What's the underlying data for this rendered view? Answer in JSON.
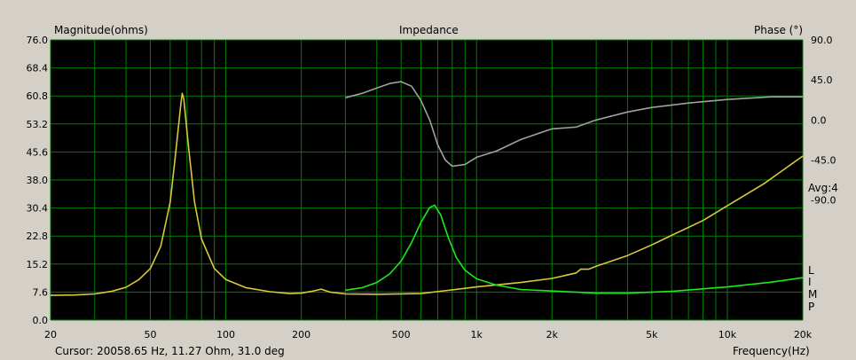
{
  "chart_data": {
    "type": "line",
    "title": "Impedance",
    "ylabel_left": "Magnitude(ohms)",
    "ylabel_right": "Phase (°)",
    "xlabel": "Frequency(Hz)",
    "x_scale": "log",
    "xlim": [
      20,
      20000
    ],
    "ylim_left": [
      0,
      76
    ],
    "ylim_right": [
      -225,
      90
    ],
    "x_ticks": [
      20,
      50,
      100,
      200,
      500,
      1000,
      2000,
      5000,
      10000,
      20000
    ],
    "x_tick_labels": [
      "20",
      "50",
      "100",
      "200",
      "500",
      "1k",
      "2k",
      "5k",
      "10k",
      "20k"
    ],
    "y_left_ticks": [
      0,
      7.6,
      15.2,
      22.8,
      30.4,
      38.0,
      45.6,
      53.2,
      60.8,
      68.4,
      76.0
    ],
    "y_left_tick_labels": [
      "0.0",
      "7.6",
      "15.2",
      "22.8",
      "30.4",
      "38.0",
      "45.6",
      "53.2",
      "60.8",
      "68.4",
      "76.0"
    ],
    "y_right_ticks": [
      90,
      45,
      0,
      -45,
      -90
    ],
    "y_right_tick_labels": [
      "90.0",
      "45.0",
      "0.0",
      "-45.0",
      "-90.0"
    ],
    "grid": true,
    "background": "#000000",
    "grid_color": "#007f00",
    "side_labels": [
      "Avg:4",
      "L",
      "I",
      "M",
      "P"
    ],
    "series": [
      {
        "axis": "left",
        "color": "#d8c93a",
        "points": [
          [
            20,
            6.7
          ],
          [
            25,
            6.8
          ],
          [
            30,
            7.1
          ],
          [
            35,
            7.8
          ],
          [
            40,
            8.9
          ],
          [
            45,
            11
          ],
          [
            50,
            14
          ],
          [
            55,
            20
          ],
          [
            60,
            32
          ],
          [
            63,
            45
          ],
          [
            66,
            58
          ],
          [
            67,
            61.5
          ],
          [
            68,
            60
          ],
          [
            71,
            47
          ],
          [
            75,
            32
          ],
          [
            80,
            22
          ],
          [
            90,
            14
          ],
          [
            100,
            11
          ],
          [
            120,
            8.8
          ],
          [
            150,
            7.7
          ],
          [
            180,
            7.2
          ],
          [
            200,
            7.3
          ],
          [
            220,
            7.8
          ],
          [
            240,
            8.4
          ],
          [
            260,
            7.6
          ],
          [
            300,
            7.1
          ],
          [
            400,
            7.0
          ],
          [
            600,
            7.2
          ],
          [
            800,
            8.2
          ],
          [
            1000,
            9.0
          ],
          [
            1500,
            10.2
          ],
          [
            2000,
            11.3
          ],
          [
            2500,
            12.8
          ],
          [
            2600,
            13.8
          ],
          [
            2800,
            13.8
          ],
          [
            3000,
            14.6
          ],
          [
            4000,
            17.5
          ],
          [
            5000,
            20.4
          ],
          [
            6000,
            23
          ],
          [
            8000,
            27
          ],
          [
            10000,
            31
          ],
          [
            14000,
            37
          ],
          [
            20000,
            44.5
          ]
        ]
      },
      {
        "axis": "left",
        "color": "#1ee81e",
        "points": [
          [
            300,
            8.1
          ],
          [
            350,
            8.8
          ],
          [
            400,
            10.2
          ],
          [
            450,
            12.5
          ],
          [
            500,
            16
          ],
          [
            550,
            21
          ],
          [
            600,
            26.5
          ],
          [
            650,
            30.5
          ],
          [
            680,
            31.2
          ],
          [
            720,
            28.5
          ],
          [
            770,
            22.5
          ],
          [
            830,
            17
          ],
          [
            900,
            13.5
          ],
          [
            1000,
            11.2
          ],
          [
            1200,
            9.5
          ],
          [
            1500,
            8.3
          ],
          [
            2000,
            7.9
          ],
          [
            3000,
            7.3
          ],
          [
            4000,
            7.3
          ],
          [
            6000,
            7.8
          ],
          [
            10000,
            9.0
          ],
          [
            15000,
            10.3
          ],
          [
            20000,
            11.5
          ]
        ]
      },
      {
        "axis": "right",
        "color": "#a0a0a0",
        "points": [
          [
            300,
            25
          ],
          [
            350,
            30
          ],
          [
            400,
            36
          ],
          [
            450,
            41
          ],
          [
            500,
            43
          ],
          [
            550,
            38
          ],
          [
            600,
            22
          ],
          [
            650,
            0
          ],
          [
            700,
            -28
          ],
          [
            750,
            -45
          ],
          [
            800,
            -52
          ],
          [
            900,
            -50
          ],
          [
            1000,
            -42
          ],
          [
            1200,
            -35
          ],
          [
            1500,
            -22
          ],
          [
            2000,
            -10
          ],
          [
            2500,
            -8
          ],
          [
            3000,
            0
          ],
          [
            4000,
            9
          ],
          [
            5000,
            14
          ],
          [
            7000,
            19
          ],
          [
            10000,
            23
          ],
          [
            15000,
            26
          ],
          [
            20000,
            26
          ]
        ]
      }
    ]
  },
  "cursor_readout": "Cursor: 20058.65 Hz, 11.27 Ohm, 31.0 deg"
}
